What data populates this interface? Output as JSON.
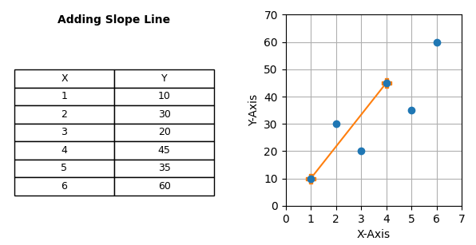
{
  "chart_data": [
    {
      "type": "table",
      "title": "Adding Slope Line",
      "columns": [
        "X",
        "Y"
      ],
      "rows": [
        [
          1,
          10
        ],
        [
          2,
          30
        ],
        [
          3,
          20
        ],
        [
          4,
          45
        ],
        [
          5,
          35
        ],
        [
          6,
          60
        ]
      ]
    },
    {
      "type": "scatter",
      "xlabel": "X-Axis",
      "ylabel": "Y-Axis",
      "xlim": [
        0,
        7
      ],
      "ylim": [
        0,
        70
      ],
      "xticks": [
        0,
        1,
        2,
        3,
        4,
        5,
        6,
        7
      ],
      "yticks": [
        0,
        10,
        20,
        30,
        40,
        50,
        60,
        70
      ],
      "grid": true,
      "series": [
        {
          "type": "scatter",
          "x": [
            1,
            2,
            3,
            4,
            5,
            6
          ],
          "values": [
            10,
            30,
            20,
            45,
            35,
            60
          ],
          "marker": "circle"
        },
        {
          "type": "line",
          "x": [
            1,
            4
          ],
          "values": [
            10,
            45
          ],
          "marker": "plus"
        }
      ]
    }
  ]
}
